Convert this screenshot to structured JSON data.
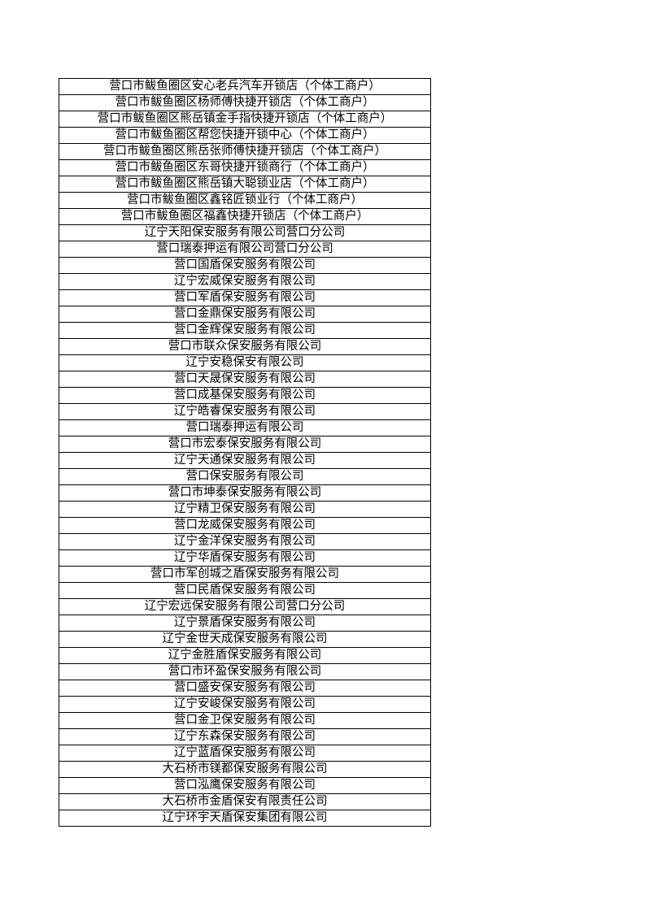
{
  "table": {
    "rows": [
      "营口市鲅鱼圈区安心老兵汽车开锁店（个体工商户）",
      "营口市鲅鱼圈区杨师傅快捷开锁店（个体工商户）",
      "营口市鲅鱼圈区熊岳镇金手指快捷开锁店（个体工商户）",
      "营口市鲅鱼圈区帮您快捷开锁中心（个体工商户）",
      "营口市鲅鱼圈区熊岳张师傅快捷开锁店（个体工商户）",
      "营口市鲅鱼圈区东哥快捷开锁商行（个体工商户）",
      "营口市鲅鱼圈区熊岳镇大聪锁业店（个体工商户）",
      "营口市鲅鱼圈区鑫铭匠锁业行（个体工商户）",
      "营口市鲅鱼圈区福鑫快捷开锁店（个体工商户）",
      "辽宁天阳保安服务有限公司营口分公司",
      "营口瑞泰押运有限公司营口分公司",
      "营口国盾保安服务有限公司",
      "辽宁宏威保安服务有限公司",
      "营口军盾保安服务有限公司",
      "营口金鼎保安服务有限公司",
      "营口金辉保安服务有限公司",
      "营口市联众保安服务有限公司",
      "辽宁安稳保安有限公司",
      "营口天晟保安服务有限公司",
      "营口成基保安服务有限公司",
      "辽宁皓睿保安服务有限公司",
      "营口瑞泰押运有限公司",
      "营口市宏泰保安服务有限公司",
      "辽宁天通保安服务有限公司",
      "营口保安服务有限公司",
      "营口市坤泰保安服务有限公司",
      "辽宁精卫保安服务有限公司",
      "营口龙威保安服务有限公司",
      "辽宁金洋保安服务有限公司",
      "辽宁华盾保安服务有限公司",
      "营口市军创城之盾保安服务有限公司",
      "营口民盾保安服务有限公司",
      "辽宁宏远保安服务有限公司营口分公司",
      "辽宁景盾保安服务有限公司",
      "辽宁金世天成保安服务有限公司",
      "辽宁金胜盾保安服务有限公司",
      "营口市环盈保安服务有限公司",
      "营口盛安保安服务有限公司",
      "辽宁安峻保安服务有限公司",
      "营口金卫保安服务有限公司",
      "辽宁东森保安服务有限公司",
      "辽宁蓝盾保安服务有限公司",
      "大石桥市镁都保安服务有限公司",
      "营口泓鹰保安服务有限公司",
      "大石桥市金盾保安有限责任公司",
      "辽宁环宇天盾保安集团有限公司"
    ]
  }
}
